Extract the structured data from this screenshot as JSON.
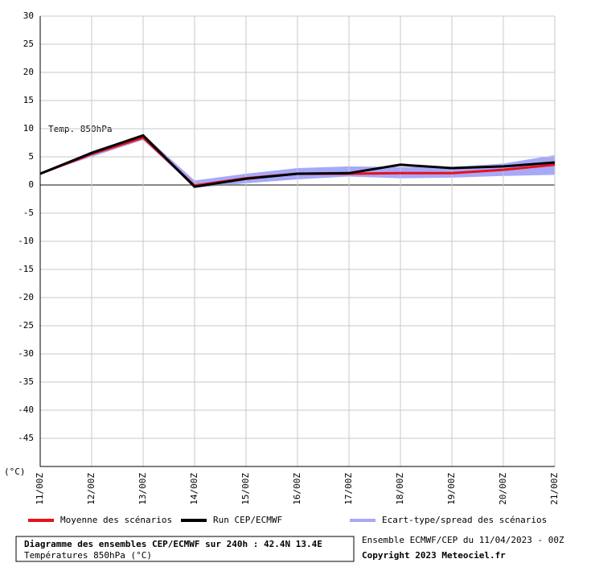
{
  "chart_data": {
    "type": "line",
    "title": "Diagramme des ensembles CEP/ECMWF sur 240h : 42.4N 13.4E",
    "subtitle": "Températures 850hPa (°C)",
    "annotation": "Temp. 850hPa",
    "y_label": "(°C)",
    "source": "Ensemble ECMWF/CEP du 11/04/2023 - 00Z",
    "copyright": "Copyright 2023 Meteociel.fr",
    "categories": [
      "11/00Z",
      "12/00Z",
      "13/00Z",
      "14/00Z",
      "15/00Z",
      "16/00Z",
      "17/00Z",
      "18/00Z",
      "19/00Z",
      "20/00Z",
      "21/00Z"
    ],
    "ylim": [
      -50,
      30
    ],
    "yticks": [
      30,
      25,
      20,
      15,
      10,
      5,
      0,
      -5,
      -10,
      -15,
      -20,
      -25,
      -30,
      -35,
      -40,
      -45
    ],
    "grid": true,
    "band": {
      "name": "Ecart-type/spread des scénarios",
      "color": "#a8a8f8",
      "lower": [
        2,
        5,
        8,
        -0.5,
        0.3,
        1,
        1.5,
        1.2,
        1.3,
        1.6,
        1.8
      ],
      "upper": [
        2,
        6,
        9,
        0.8,
        2,
        3,
        3.3,
        3.2,
        3.2,
        3.8,
        5.3
      ]
    },
    "series": [
      {
        "name": "Moyenne des scénarios",
        "color": "#e8101c",
        "values": [
          2,
          5.5,
          8.4,
          -0.1,
          1.2,
          2,
          2,
          2.1,
          2.1,
          2.7,
          3.6
        ]
      },
      {
        "name": "Run CEP/ECMWF",
        "color": "#000000",
        "values": [
          2,
          5.7,
          8.8,
          -0.3,
          1.1,
          2,
          2.1,
          3.6,
          3,
          3.3,
          4
        ]
      }
    ]
  }
}
